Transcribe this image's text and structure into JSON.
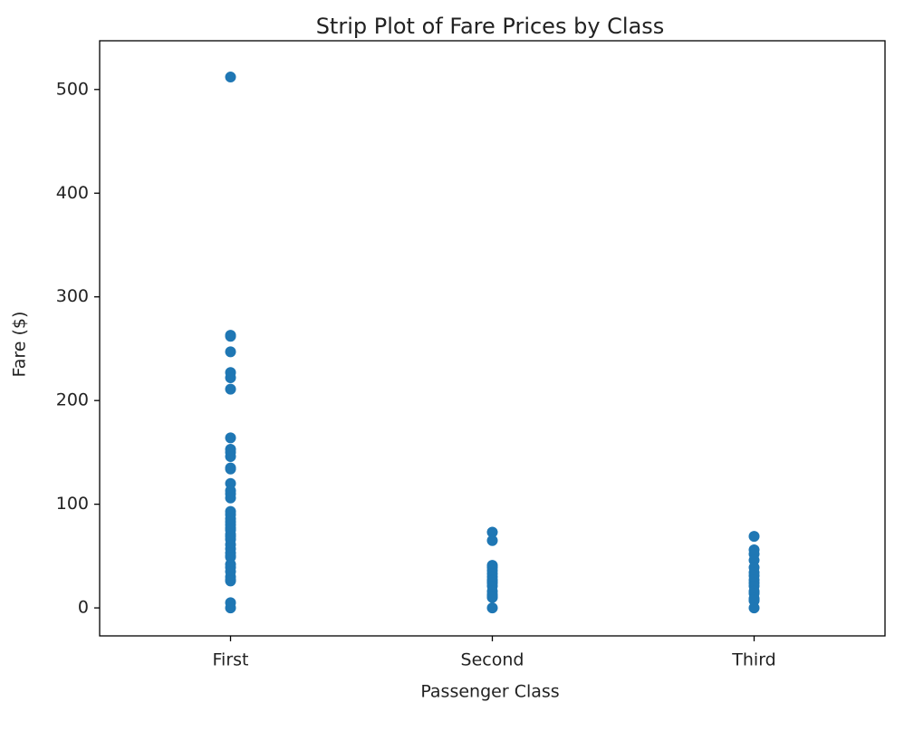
{
  "chart_data": {
    "type": "strip",
    "title": "Strip Plot of Fare Prices by Class",
    "x_label": "Passenger Class",
    "y_label": "Fare ($)",
    "categories": [
      "First",
      "Second",
      "Third"
    ],
    "values": [
      [
        512,
        263,
        262,
        247,
        227,
        222,
        211,
        164,
        153,
        150,
        146,
        135,
        134,
        120,
        113,
        110,
        106,
        93,
        90,
        86,
        83,
        80,
        77,
        75,
        71,
        69,
        66,
        61,
        57,
        53,
        50,
        49,
        42,
        39,
        35,
        30,
        27,
        26,
        5,
        0
      ],
      [
        73,
        65,
        41,
        39,
        36,
        33,
        30,
        27,
        26,
        24,
        21,
        16,
        13,
        11,
        10,
        0
      ],
      [
        69,
        56,
        52,
        46,
        39,
        34,
        31,
        27,
        24,
        21,
        16,
        14,
        9,
        8,
        7,
        0
      ]
    ],
    "color": "#1f77b4",
    "ylim": [
      -27,
      547
    ],
    "yticks": [
      0,
      100,
      200,
      300,
      400,
      500
    ]
  }
}
